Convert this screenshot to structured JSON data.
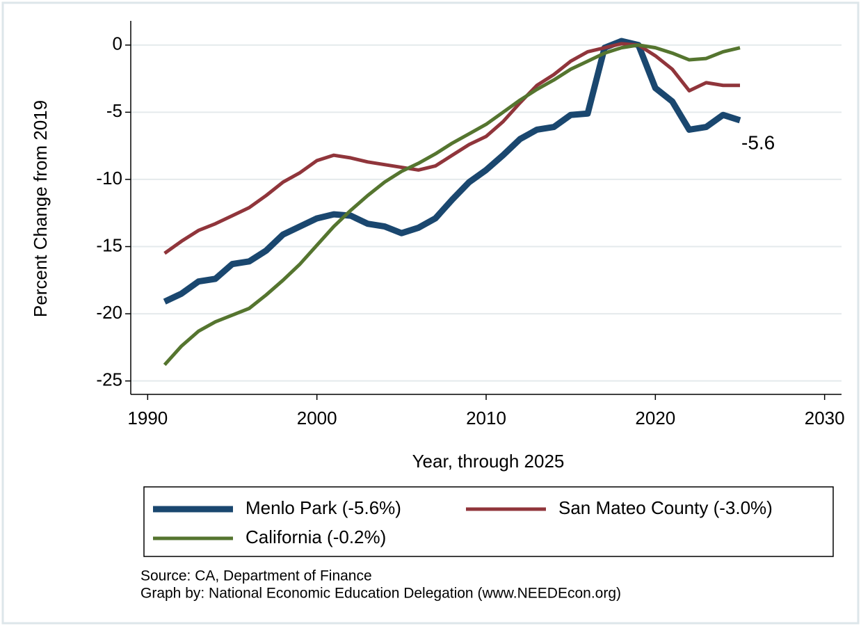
{
  "chart_data": {
    "type": "line",
    "xlabel": "Year, through 2025",
    "ylabel": "Percent Change from 2019",
    "x": [
      1991,
      1992,
      1993,
      1994,
      1995,
      1996,
      1997,
      1998,
      1999,
      2000,
      2001,
      2002,
      2003,
      2004,
      2005,
      2006,
      2007,
      2008,
      2009,
      2010,
      2011,
      2012,
      2013,
      2014,
      2015,
      2016,
      2017,
      2018,
      2019,
      2020,
      2021,
      2022,
      2023,
      2024,
      2025
    ],
    "series": [
      {
        "name": "Menlo Park (-5.6%)",
        "color": "#1a476f",
        "width": 9,
        "values": [
          -19.1,
          -18.5,
          -17.6,
          -17.4,
          -16.3,
          -16.1,
          -15.3,
          -14.1,
          -13.5,
          -12.9,
          -12.6,
          -12.7,
          -13.3,
          -13.5,
          -14.0,
          -13.6,
          -12.9,
          -11.5,
          -10.2,
          -9.3,
          -8.2,
          -7.0,
          -6.3,
          -6.1,
          -5.2,
          -5.1,
          -0.2,
          0.3,
          0,
          -3.2,
          -4.2,
          -6.3,
          -6.1,
          -5.2,
          -5.6
        ]
      },
      {
        "name": "San Mateo County (-3.0%)",
        "color": "#90353b",
        "width": 5,
        "values": [
          -15.5,
          -14.6,
          -13.8,
          -13.3,
          -12.7,
          -12.1,
          -11.2,
          -10.2,
          -9.5,
          -8.6,
          -8.2,
          -8.4,
          -8.7,
          -8.9,
          -9.1,
          -9.3,
          -9.0,
          -8.2,
          -7.4,
          -6.8,
          -5.7,
          -4.3,
          -3.0,
          -2.2,
          -1.2,
          -0.5,
          -0.2,
          0.1,
          0,
          -0.8,
          -1.8,
          -3.4,
          -2.8,
          -3.0,
          -3.0
        ]
      },
      {
        "name": "California (-0.2%)",
        "color": "#55752f",
        "width": 5,
        "values": [
          -23.8,
          -22.4,
          -21.3,
          -20.6,
          -20.1,
          -19.6,
          -18.6,
          -17.5,
          -16.3,
          -14.9,
          -13.5,
          -12.3,
          -11.2,
          -10.2,
          -9.4,
          -8.8,
          -8.1,
          -7.3,
          -6.6,
          -5.9,
          -5.0,
          -4.1,
          -3.3,
          -2.6,
          -1.8,
          -1.2,
          -0.6,
          -0.2,
          0,
          -0.2,
          -0.6,
          -1.1,
          -1.0,
          -0.5,
          -0.2
        ]
      }
    ],
    "annotation": "-5.6",
    "xlim": [
      1989,
      2031
    ],
    "xticks": [
      1990,
      2000,
      2010,
      2020,
      2030
    ],
    "ylim": [
      -26,
      1.8
    ],
    "yticks": [
      -25,
      -20,
      -15,
      -10,
      -5,
      0
    ],
    "grid": true,
    "legend": "bottom",
    "notes": [
      "Source: CA, Department of Finance",
      "Graph by: National Economic Education Delegation (www.NEEDEcon.org)"
    ]
  }
}
